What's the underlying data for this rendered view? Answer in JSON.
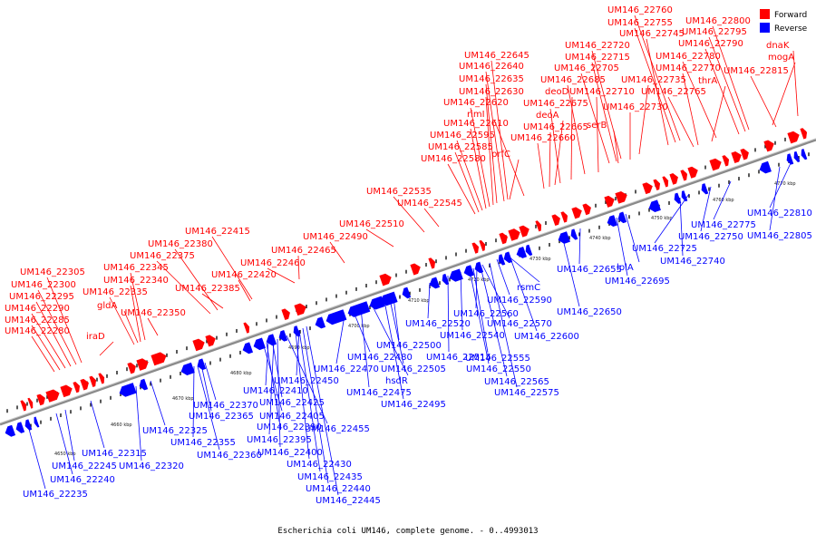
{
  "colors": {
    "forward": "#ff0000",
    "reverse": "#0000ff",
    "backbone": "#888888"
  },
  "legend": {
    "forward": "Forward",
    "reverse": "Reverse"
  },
  "caption": "Escherichia coli UM146, complete genome. - 0..4993013",
  "kbp_ticks": [
    "4650 kbp",
    "4660 kbp",
    "4670 kbp",
    "4680 kbp",
    "4690 kbp",
    "4700 kbp",
    "4710 kbp",
    "4720 kbp",
    "4730 kbp",
    "4740 kbp",
    "4750 kbp",
    "4760 kbp",
    "4770 kbp"
  ],
  "forward_labels": [
    "UM146_22760",
    "UM146_22755",
    "UM146_22745",
    "UM146_22800",
    "UM146_22795",
    "UM146_22720",
    "UM146_22790",
    "dnaK",
    "UM146_22715",
    "mogA",
    "UM146_22645",
    "UM146_22705",
    "UM146_22780",
    "UM146_22640",
    "UM146_22685",
    "UM146_22770",
    "UM146_22815",
    "UM146_22635",
    "UM146_22735",
    "thrA",
    "UM146_22630",
    "deoD",
    "UM146_22710",
    "UM146_22765",
    "UM146_22620",
    "UM146_22675",
    "UM146_22730",
    "rimI",
    "deoA",
    "UM146_22610",
    "UM146_22665",
    "serB",
    "UM146_22595",
    "UM146_22660",
    "UM146_22585",
    "prfC",
    "UM146_22580",
    "UM146_22535",
    "UM146_22545",
    "UM146_22510",
    "UM146_22415",
    "UM146_22490",
    "UM146_22380",
    "UM146_22465",
    "UM146_22375",
    "UM146_22460",
    "UM146_22345",
    "UM146_22305",
    "UM146_22420",
    "UM146_22340",
    "UM146_22300",
    "UM146_22385",
    "UM146_22335",
    "UM146_22295",
    "gldA",
    "UM146_22290",
    "UM146_22350",
    "UM146_22285",
    "UM146_22280",
    "iraD"
  ],
  "reverse_labels": [
    "UM146_22810",
    "UM146_22775",
    "UM146_22805",
    "UM146_22750",
    "UM146_22725",
    "UM146_22740",
    "lplA",
    "UM146_22655",
    "UM146_22695",
    "rsmC",
    "UM146_22590",
    "UM146_22560",
    "UM146_22650",
    "UM146_22520",
    "UM146_22570",
    "UM146_22600",
    "UM146_22540",
    "UM146_22500",
    "UM146_22555",
    "UM146_22480",
    "UM146_22515",
    "UM146_22470",
    "UM146_22505",
    "UM146_22550",
    "UM146_22565",
    "UM146_22450",
    "hsdR",
    "UM146_22575",
    "UM146_22475",
    "UM146_22495",
    "UM146_22425",
    "UM146_22370",
    "UM146_22410",
    "UM146_22405",
    "UM146_22455",
    "UM146_22365",
    "UM146_22390",
    "UM146_22325",
    "UM146_22395",
    "UM146_22355",
    "UM146_22400",
    "UM146_22360",
    "UM146_22315",
    "UM146_22320",
    "UM146_22430",
    "UM146_22245",
    "UM146_22435",
    "UM146_22240",
    "UM146_22440",
    "UM146_22235",
    "UM146_22445"
  ]
}
